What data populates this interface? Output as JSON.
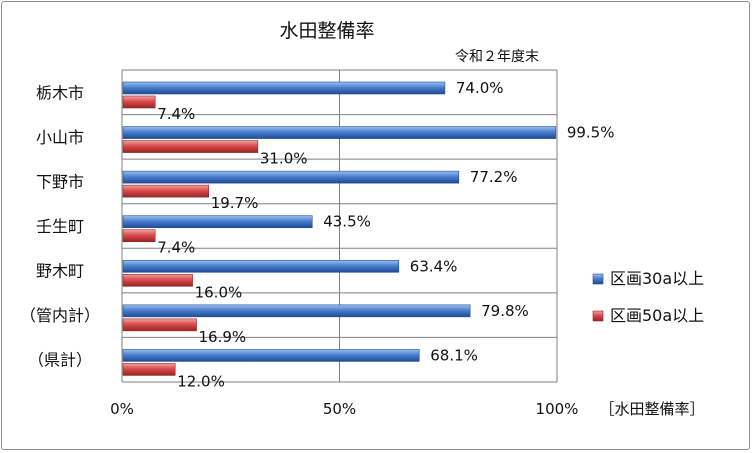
{
  "chart_data": {
    "type": "bar",
    "orientation": "horizontal",
    "title": "水田整備率",
    "subtitle": "令和２年度末",
    "xlabel": "［水田整備率］",
    "categories": [
      "栃木市",
      "小山市",
      "下野市",
      "壬生町",
      "野木町",
      "（管内計）",
      "（県計）"
    ],
    "series": [
      {
        "name": "区画30a以上",
        "color": "#4a7fd0",
        "values": [
          74.0,
          99.5,
          77.2,
          43.5,
          63.4,
          79.8,
          68.1
        ],
        "labels": [
          "74.0%",
          "99.5%",
          "77.2%",
          "43.5%",
          "63.4%",
          "79.8%",
          "68.1%"
        ]
      },
      {
        "name": "区画50a以上",
        "color": "#d94b4b",
        "values": [
          7.4,
          31.0,
          19.7,
          7.4,
          16.0,
          16.9,
          12.0
        ],
        "labels": [
          "7.4%",
          "31.0%",
          "19.7%",
          "7.4%",
          "16.0%",
          "16.9%",
          "12.0%"
        ]
      }
    ],
    "xlim": [
      0,
      100
    ],
    "xticks": [
      0,
      50,
      100
    ],
    "xtick_labels": [
      "0%",
      "50%",
      "100%"
    ],
    "grid": true,
    "legend": "right"
  }
}
